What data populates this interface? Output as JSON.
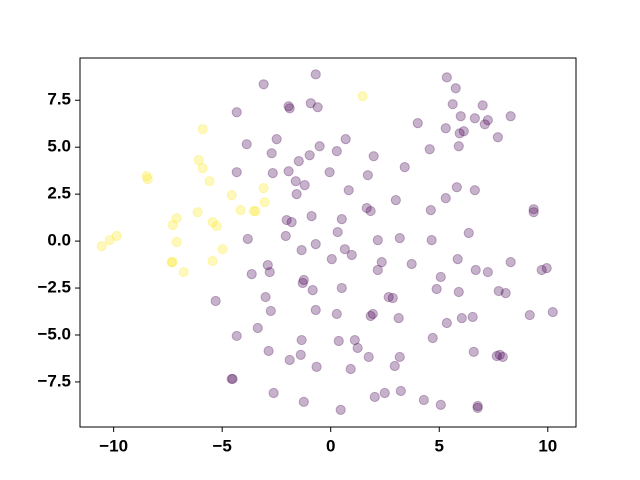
{
  "chart_data": {
    "type": "scatter",
    "xlim": [
      -11.55,
      11.3
    ],
    "ylim": [
      -9.9,
      9.75
    ],
    "xticks": [
      {
        "value": -10,
        "label": "−10"
      },
      {
        "value": -5,
        "label": "−5"
      },
      0,
      5,
      10
    ],
    "yticks": [
      {
        "value": -7.5,
        "label": "−7.5"
      },
      {
        "value": -5,
        "label": "−5.0"
      },
      {
        "value": -2.5,
        "label": "−2.5"
      },
      {
        "value": 0,
        "label": "0.0"
      },
      {
        "value": 2.5,
        "label": "2.5"
      },
      {
        "value": 5,
        "label": "5.0"
      },
      {
        "value": 7.5,
        "label": "7.5"
      }
    ],
    "grid": false,
    "alpha": 0.3,
    "series": [
      {
        "color": "#440154",
        "x": [
          -4.33,
          -3.87,
          -4.33,
          -5.3,
          -4.33,
          -3.36,
          -4.52,
          -4.56,
          -2.63,
          -3.09,
          -2.49,
          -2.72,
          -2.67,
          -3.82,
          -3.64,
          -2.9,
          -2.81,
          -3.0,
          -2.76,
          -2.86,
          -1.94,
          -1.89,
          -0.92,
          -0.6,
          -0.69,
          -1.47,
          -1.94,
          -1.61,
          -1.57,
          -1.2,
          -0.97,
          -0.51,
          -0.05,
          -2.03,
          -1.8,
          -0.88,
          -2.07,
          -1.34,
          -0.69,
          -1.24,
          -1.29,
          -0.83,
          -0.69,
          -1.34,
          -1.38,
          -1.89,
          -0.65,
          -1.24,
          0.05,
          0.32,
          0.51,
          0.83,
          0.69,
          0.28,
          0.65,
          0.97,
          0.51,
          0.28,
          0.37,
          1.11,
          1.24,
          0.46,
          0.92,
          1.75,
          2.03,
          2.49,
          1.94,
          1.84,
          2.17,
          2.17,
          2.35,
          1.66,
          1.84,
          1.71,
          1.98,
          2.67,
          2.86,
          3.0,
          3.18,
          3.13,
          3.18,
          3.23,
          3.41,
          3.73,
          2.95,
          4.01,
          4.29,
          4.56,
          4.61,
          4.65,
          4.7,
          4.88,
          5.07,
          5.07,
          5.35,
          5.3,
          5.35,
          5.62,
          5.76,
          5.9,
          5.94,
          6.13,
          5.99,
          5.81,
          5.3,
          5.85,
          5.9,
          6.04,
          6.36,
          6.64,
          6.64,
          6.68,
          6.54,
          6.59,
          6.77,
          6.77,
          7.0,
          7.1,
          7.24,
          7.7,
          7.24,
          7.74,
          7.79,
          7.93,
          8.06,
          8.29,
          8.29,
          9.17,
          9.35,
          9.35,
          9.72,
          9.95,
          10.23,
          7.65
        ],
        "values": [
          6.86,
          5.16,
          3.67,
          -3.19,
          -5.05,
          -4.63,
          -7.34,
          -7.34,
          -8.09,
          8.35,
          5.43,
          4.68,
          3.62,
          0.11,
          -1.76,
          -1.28,
          -1.65,
          -2.98,
          -3.72,
          -5.85,
          7.18,
          7.07,
          7.34,
          7.13,
          8.88,
          4.26,
          3.72,
          3.19,
          2.5,
          2.98,
          4.57,
          5.05,
          3.67,
          1.12,
          1.01,
          1.33,
          0.27,
          -0.48,
          -0.16,
          -2.07,
          -2.23,
          -2.61,
          -3.67,
          -5.27,
          -6.06,
          -6.33,
          -6.7,
          -8.56,
          -0.96,
          0.48,
          1.17,
          2.71,
          5.43,
          4.79,
          -0.43,
          -0.74,
          -2.5,
          -3.88,
          -5.32,
          -5.27,
          -5.69,
          -8.99,
          -6.81,
          -6.17,
          -8.3,
          -8.09,
          -3.88,
          -3.99,
          -1.54,
          0.05,
          -1.12,
          1.76,
          1.6,
          3.51,
          4.52,
          -2.98,
          -3.03,
          2.18,
          0.16,
          -4.1,
          -6.17,
          -7.98,
          3.94,
          -1.22,
          -6.65,
          6.28,
          -8.46,
          4.89,
          1.65,
          0.05,
          -5.16,
          -2.55,
          -1.91,
          -8.72,
          -4.36,
          6.01,
          8.72,
          7.29,
          8.14,
          5.05,
          5.74,
          5.85,
          6.65,
          2.87,
          2.29,
          -0.96,
          -2.71,
          -4.1,
          0.43,
          2.71,
          6.54,
          -1.54,
          -4.04,
          -5.9,
          -8.78,
          -8.88,
          7.23,
          6.22,
          6.44,
          5.53,
          -1.65,
          -2.66,
          -6.06,
          -6.17,
          -2.77,
          6.65,
          -1.12,
          -3.94,
          1.7,
          1.54,
          -1.54,
          -1.44,
          -3.78,
          -6.12
        ]
      },
      {
        "color": "#fde725",
        "x": [
          -10.55,
          -10.18,
          -9.86,
          -8.48,
          -8.43,
          -7.28,
          -7.1,
          -7.33,
          -7.28,
          -7.1,
          -6.77,
          -5.9,
          -6.08,
          -5.9,
          -5.58,
          -6.13,
          -5.44,
          -5.25,
          -5.44,
          -4.98,
          -4.56,
          -4.15,
          -3.55,
          -3.46,
          -3.09,
          -3.04,
          1.47
        ],
        "values": [
          -0.27,
          0.05,
          0.27,
          3.46,
          3.3,
          0.85,
          1.22,
          -1.12,
          -1.12,
          -0.05,
          -1.65,
          5.96,
          4.31,
          3.88,
          3.19,
          1.54,
          1.01,
          0.8,
          -1.06,
          -0.43,
          2.45,
          1.65,
          1.6,
          1.6,
          2.82,
          2.07,
          7.71
        ]
      }
    ]
  }
}
